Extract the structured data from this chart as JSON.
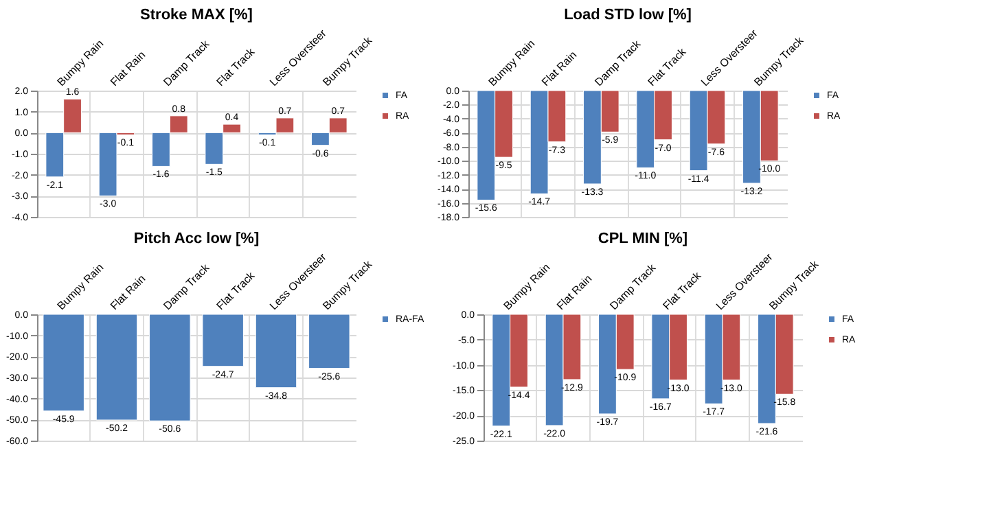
{
  "chart_data": [
    {
      "type": "bar",
      "title": "Stroke MAX [%]",
      "categories": [
        "Bumpy Rain",
        "Flat Rain",
        "Damp Track",
        "Flat Track",
        "Less Oversteer",
        "Bumpy Track"
      ],
      "series": [
        {
          "name": "FA",
          "color": "#4f81bd",
          "values": [
            -2.1,
            -3.0,
            -1.6,
            -1.5,
            -0.1,
            -0.6
          ],
          "value_labels": [
            "-2.1",
            "-3.0",
            "-1.6",
            "-1.5",
            "-0.1",
            "-0.6"
          ]
        },
        {
          "name": "RA",
          "color": "#c0504d",
          "values": [
            1.6,
            -0.1,
            0.8,
            0.4,
            0.7,
            0.7
          ],
          "value_labels": [
            "1.6",
            "-0.1",
            "0.8",
            "0.4",
            "0.7",
            "0.7"
          ]
        }
      ],
      "ylim": [
        -4,
        2
      ],
      "yticks": [
        {
          "value": -4,
          "label": "-4.0"
        },
        {
          "value": -3,
          "label": "-3.0"
        },
        {
          "value": -2,
          "label": "-2.0"
        },
        {
          "value": -1,
          "label": "-1.0"
        },
        {
          "value": 0,
          "label": "0.0"
        },
        {
          "value": 1,
          "label": "1.0"
        },
        {
          "value": 2,
          "label": "2.0"
        }
      ],
      "grid": true,
      "legend": "right"
    },
    {
      "type": "bar",
      "title": "Load STD low [%]",
      "categories": [
        "Bumpy Rain",
        "Flat Rain",
        "Damp Track",
        "Flat Track",
        "Less Oversteer",
        "Bumpy Track"
      ],
      "series": [
        {
          "name": "FA",
          "color": "#4f81bd",
          "values": [
            -15.6,
            -14.7,
            -13.3,
            -11.0,
            -11.4,
            -13.2
          ],
          "value_labels": [
            "-15.6",
            "-14.7",
            "-13.3",
            "-11.0",
            "-11.4",
            "-13.2"
          ]
        },
        {
          "name": "RA",
          "color": "#c0504d",
          "values": [
            -9.5,
            -7.3,
            -5.9,
            -7.0,
            -7.6,
            -10.0
          ],
          "value_labels": [
            "-9.5",
            "-7.3",
            "-5.9",
            "-7.0",
            "-7.6",
            "-10.0"
          ]
        }
      ],
      "ylim": [
        -18,
        0
      ],
      "yticks": [
        {
          "value": -18,
          "label": "-18.0"
        },
        {
          "value": -16,
          "label": "-16.0"
        },
        {
          "value": -14,
          "label": "-14.0"
        },
        {
          "value": -12,
          "label": "-12.0"
        },
        {
          "value": -10,
          "label": "-10.0"
        },
        {
          "value": -8,
          "label": "-8.0"
        },
        {
          "value": -6,
          "label": "-6.0"
        },
        {
          "value": -4,
          "label": "-4.0"
        },
        {
          "value": -2,
          "label": "-2.0"
        },
        {
          "value": 0,
          "label": "0.0"
        }
      ],
      "grid": true,
      "legend": "right"
    },
    {
      "type": "bar",
      "title": "Pitch Acc low [%]",
      "categories": [
        "Bumpy Rain",
        "Flat Rain",
        "Damp Track",
        "Flat Track",
        "Less Oversteer",
        "Bumpy Track"
      ],
      "series": [
        {
          "name": "RA-FA",
          "color": "#4f81bd",
          "values": [
            -45.9,
            -50.2,
            -50.6,
            -24.7,
            -34.8,
            -25.6
          ],
          "value_labels": [
            "-45.9",
            "-50.2",
            "-50.6",
            "-24.7",
            "-34.8",
            "-25.6"
          ]
        }
      ],
      "ylim": [
        -60,
        0
      ],
      "yticks": [
        {
          "value": -60,
          "label": "-60.0"
        },
        {
          "value": -50,
          "label": "-50.0"
        },
        {
          "value": -40,
          "label": "-40.0"
        },
        {
          "value": -30,
          "label": "-30.0"
        },
        {
          "value": -20,
          "label": "-20.0"
        },
        {
          "value": -10,
          "label": "-10.0"
        },
        {
          "value": 0,
          "label": "0.0"
        }
      ],
      "grid": true,
      "legend": "right"
    },
    {
      "type": "bar",
      "title": "CPL MIN [%]",
      "categories": [
        "Bumpy Rain",
        "Flat Rain",
        "Damp Track",
        "Flat Track",
        "Less Oversteer",
        "Bumpy Track"
      ],
      "series": [
        {
          "name": "FA",
          "color": "#4f81bd",
          "values": [
            -22.1,
            -22.0,
            -19.7,
            -16.7,
            -17.7,
            -21.6
          ],
          "value_labels": [
            "-22.1",
            "-22.0",
            "-19.7",
            "-16.7",
            "-17.7",
            "-21.6"
          ]
        },
        {
          "name": "RA",
          "color": "#c0504d",
          "values": [
            -14.4,
            -12.9,
            -10.9,
            -13.0,
            -13.0,
            -15.8
          ],
          "value_labels": [
            "-14.4",
            "-12.9",
            "-10.9",
            "-13.0",
            "-13.0",
            "-15.8"
          ]
        }
      ],
      "ylim": [
        -25,
        0
      ],
      "yticks": [
        {
          "value": -25,
          "label": "-25.0"
        },
        {
          "value": -20,
          "label": "-20.0"
        },
        {
          "value": -15,
          "label": "-15.0"
        },
        {
          "value": -10,
          "label": "-10.0"
        },
        {
          "value": -5,
          "label": "-5.0"
        },
        {
          "value": 0,
          "label": "0.0"
        }
      ],
      "grid": true,
      "legend": "right"
    }
  ]
}
